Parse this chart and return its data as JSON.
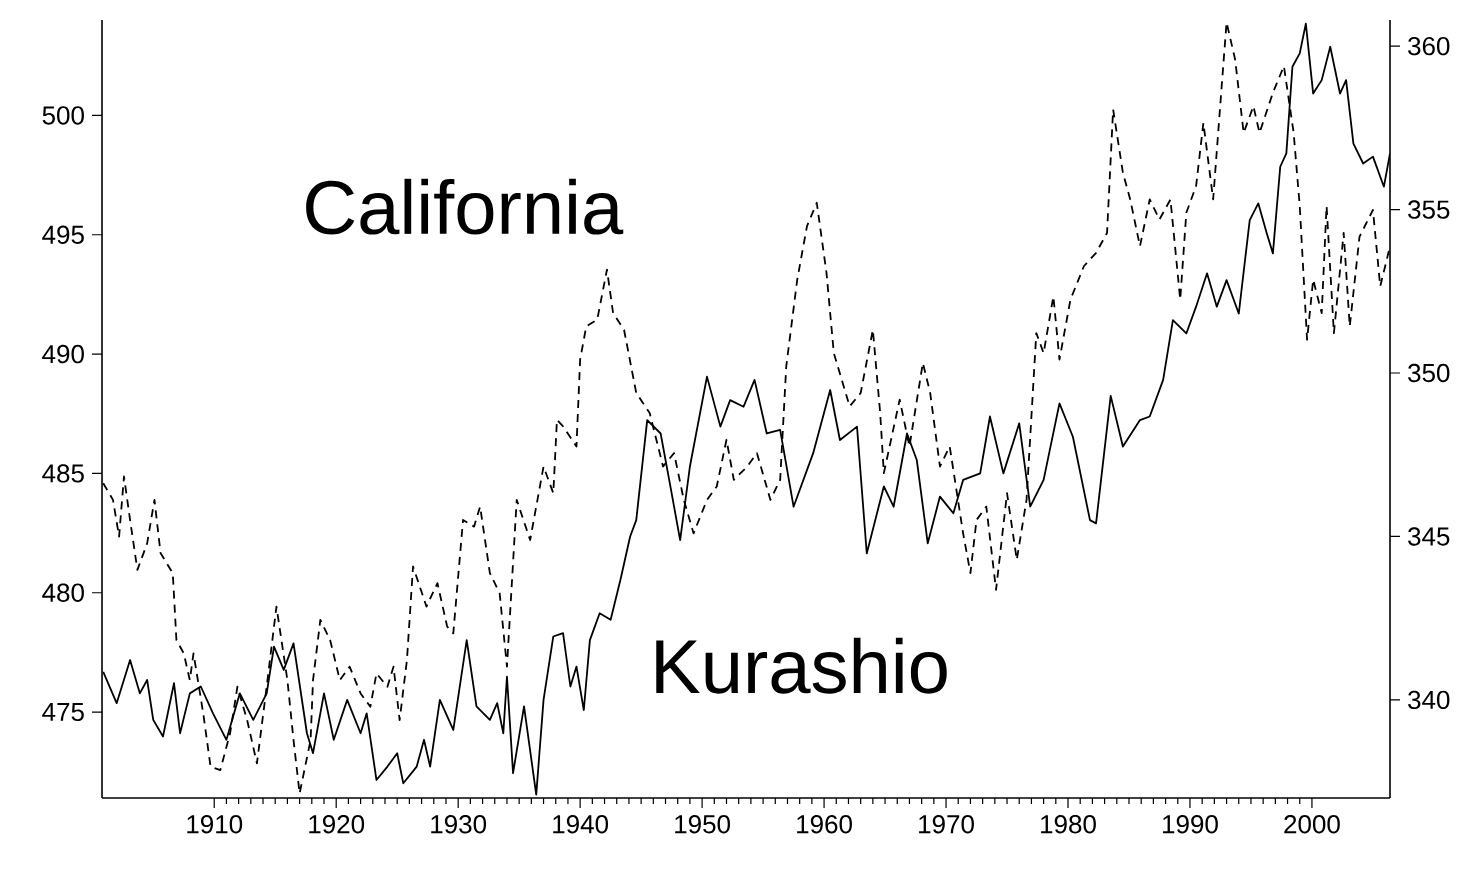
{
  "chart_data": {
    "type": "line",
    "xlim": [
      1900.8,
      2006.4
    ],
    "xticks": [
      1910,
      1920,
      1930,
      1940,
      1950,
      1960,
      1970,
      1980,
      1990,
      2000
    ],
    "ylim": [
      471.4,
      504.0
    ],
    "yticks": [
      475,
      480,
      485,
      490,
      495,
      500
    ],
    "y2lim": [
      337.0,
      360.8
    ],
    "y2ticks": [
      340,
      345,
      350,
      355,
      360
    ],
    "annotations": [
      "California",
      "Kurashio"
    ],
    "series": [
      {
        "color": "#000000",
        "line_style": "dashed",
        "x": [
          1900.9,
          1901.7,
          1902.2,
          1902.6,
          1903.1,
          1903.7,
          1904.5,
          1905.1,
          1905.6,
          1906.6,
          1906.9,
          1907.5,
          1908.0,
          1908.3,
          1909.1,
          1909.7,
          1910.5,
          1911.3,
          1911.9,
          1912.7,
          1913.5,
          1914.3,
          1915.1,
          1916.0,
          1916.5,
          1917.0,
          1917.9,
          1918.1,
          1918.7,
          1919.5,
          1920.3,
          1921.1,
          1922.0,
          1922.8,
          1923.3,
          1924.2,
          1924.7,
          1925.2,
          1925.8,
          1926.3,
          1927.4,
          1928.3,
          1929.1,
          1929.6,
          1930.4,
          1931.3,
          1931.8,
          1932.6,
          1933.4,
          1934.0,
          1934.8,
          1935.9,
          1937.0,
          1937.8,
          1938.1,
          1938.6,
          1939.7,
          1940.0,
          1940.5,
          1941.4,
          1942.2,
          1942.7,
          1943.6,
          1944.6,
          1945.7,
          1946.8,
          1947.7,
          1948.5,
          1949.3,
          1950.4,
          1951.2,
          1952.0,
          1952.6,
          1953.7,
          1954.5,
          1955.6,
          1956.4,
          1956.9,
          1957.8,
          1958.6,
          1959.4,
          1960.2,
          1960.8,
          1962.1,
          1963.0,
          1964.0,
          1964.6,
          1964.9,
          1966.2,
          1967.0,
          1968.1,
          1968.7,
          1969.5,
          1970.3,
          1971.4,
          1972.0,
          1972.5,
          1973.3,
          1974.1,
          1975.0,
          1975.8,
          1976.6,
          1977.4,
          1978.0,
          1978.8,
          1979.3,
          1980.2,
          1981.3,
          1982.3,
          1983.2,
          1983.7,
          1984.5,
          1985.1,
          1985.9,
          1986.7,
          1987.5,
          1988.4,
          1989.2,
          1989.7,
          1990.5,
          1991.1,
          1991.9,
          1992.6,
          1993.0,
          1993.7,
          1994.4,
          1995.2,
          1995.7,
          1996.8,
          1997.7,
          1998.5,
          1999.0,
          1999.6,
          2000.1,
          2000.8,
          2001.2,
          2001.8,
          2002.6,
          2003.1,
          2003.9,
          2005.0,
          2005.6,
          2006.4
        ],
        "values": [
          484.59,
          483.89,
          482.35,
          484.87,
          483.05,
          480.96,
          482.07,
          483.89,
          481.66,
          480.82,
          478.02,
          477.46,
          476.34,
          477.46,
          474.94,
          472.71,
          472.57,
          474.11,
          476.06,
          474.66,
          472.85,
          476.06,
          479.42,
          476.34,
          473.83,
          471.59,
          473.83,
          476.34,
          478.86,
          478.02,
          476.34,
          476.9,
          475.78,
          475.22,
          476.62,
          476.06,
          476.9,
          474.66,
          477.18,
          481.1,
          479.42,
          480.4,
          478.58,
          478.3,
          483.05,
          482.77,
          483.61,
          480.82,
          479.98,
          476.9,
          483.89,
          482.21,
          485.29,
          484.17,
          487.25,
          486.97,
          486.13,
          489.77,
          491.16,
          491.44,
          493.54,
          491.72,
          491.02,
          488.37,
          487.53,
          485.29,
          485.85,
          483.89,
          482.49,
          483.89,
          484.45,
          486.41,
          484.73,
          485.29,
          485.85,
          483.89,
          484.73,
          489.49,
          493.12,
          495.36,
          496.34,
          493.4,
          490.04,
          487.81,
          488.37,
          491.02,
          487.53,
          485.01,
          488.09,
          486.13,
          489.63,
          488.37,
          485.29,
          486.13,
          482.49,
          480.82,
          483.05,
          483.61,
          480.12,
          484.17,
          481.38,
          483.89,
          490.88,
          490.04,
          492.42,
          489.77,
          492.28,
          493.68,
          494.24,
          495.08,
          500.25,
          497.6,
          496.48,
          494.52,
          496.48,
          495.64,
          496.48,
          492.28,
          495.92,
          497.04,
          499.69,
          496.48,
          501.23,
          503.9,
          502.35,
          499.27,
          500.39,
          499.27,
          500.95,
          502.07,
          499.27,
          496.2,
          490.6,
          493.12,
          491.72,
          496.2,
          490.88,
          495.08,
          491.16,
          494.92,
          496.04,
          492.84,
          494.52
        ]
      },
      {
        "color": "#000000",
        "line_style": "solid",
        "axis": "y2",
        "x": [
          1900.9,
          1902.0,
          1903.1,
          1903.9,
          1904.5,
          1905.0,
          1905.8,
          1906.7,
          1907.2,
          1908.0,
          1908.9,
          1909.9,
          1911.0,
          1912.1,
          1913.2,
          1914.3,
          1914.9,
          1915.7,
          1916.5,
          1917.6,
          1918.1,
          1919.0,
          1919.8,
          1920.9,
          1922.0,
          1922.5,
          1923.3,
          1924.2,
          1925.0,
          1925.5,
          1926.6,
          1927.2,
          1927.7,
          1928.5,
          1929.6,
          1930.7,
          1931.5,
          1932.6,
          1933.2,
          1933.7,
          1934.0,
          1934.5,
          1935.4,
          1936.4,
          1937.0,
          1937.8,
          1938.6,
          1939.2,
          1939.7,
          1940.3,
          1940.8,
          1941.6,
          1942.5,
          1943.3,
          1944.1,
          1944.6,
          1945.5,
          1946.6,
          1947.4,
          1948.2,
          1949.0,
          1950.4,
          1951.5,
          1952.3,
          1953.4,
          1954.3,
          1955.3,
          1956.4,
          1957.5,
          1959.1,
          1960.5,
          1961.3,
          1962.7,
          1963.5,
          1964.9,
          1965.7,
          1966.8,
          1967.6,
          1968.5,
          1969.5,
          1970.6,
          1971.4,
          1972.8,
          1973.6,
          1974.7,
          1976.0,
          1976.9,
          1978.0,
          1979.3,
          1980.4,
          1981.8,
          1982.3,
          1983.5,
          1984.5,
          1985.9,
          1986.7,
          1987.8,
          1988.6,
          1989.7,
          1990.5,
          1991.4,
          1992.2,
          1993.0,
          1994.0,
          1994.9,
          1995.6,
          1996.3,
          1996.8,
          1997.4,
          1997.9,
          1998.4,
          1999.0,
          1999.5,
          2000.1,
          2000.8,
          2001.5,
          2002.3,
          2002.8,
          2003.4,
          2004.2,
          2005.0,
          2005.9,
          2006.4
        ],
        "values": [
          340.86,
          339.9,
          341.22,
          340.2,
          340.61,
          339.39,
          338.88,
          340.51,
          338.98,
          340.2,
          340.41,
          339.59,
          338.78,
          340.2,
          339.39,
          340.2,
          341.63,
          340.92,
          341.73,
          338.98,
          338.37,
          340.2,
          338.78,
          340.0,
          338.98,
          339.59,
          337.55,
          337.96,
          338.37,
          337.45,
          337.96,
          338.78,
          337.96,
          340.0,
          339.08,
          341.83,
          339.8,
          339.39,
          339.9,
          338.98,
          340.71,
          337.76,
          339.8,
          337.1,
          340.0,
          341.94,
          342.04,
          340.41,
          341.02,
          339.69,
          341.83,
          342.65,
          342.45,
          343.67,
          345.0,
          345.5,
          348.56,
          348.15,
          346.53,
          344.89,
          347.14,
          349.89,
          348.36,
          349.17,
          348.97,
          349.79,
          348.15,
          348.26,
          345.91,
          347.54,
          349.48,
          347.95,
          348.36,
          344.48,
          346.53,
          345.91,
          348.15,
          347.34,
          344.79,
          346.22,
          345.71,
          346.73,
          346.93,
          348.67,
          346.93,
          348.46,
          345.91,
          346.73,
          349.07,
          348.05,
          345.5,
          345.4,
          349.3,
          347.75,
          348.56,
          348.67,
          349.79,
          351.62,
          351.21,
          352.03,
          353.05,
          352.03,
          352.84,
          351.82,
          354.68,
          355.19,
          354.27,
          353.66,
          356.31,
          356.72,
          359.37,
          359.78,
          360.69,
          358.55,
          358.96,
          359.98,
          358.55,
          358.96,
          357.02,
          356.41,
          356.62,
          355.7,
          356.72
        ]
      }
    ]
  }
}
